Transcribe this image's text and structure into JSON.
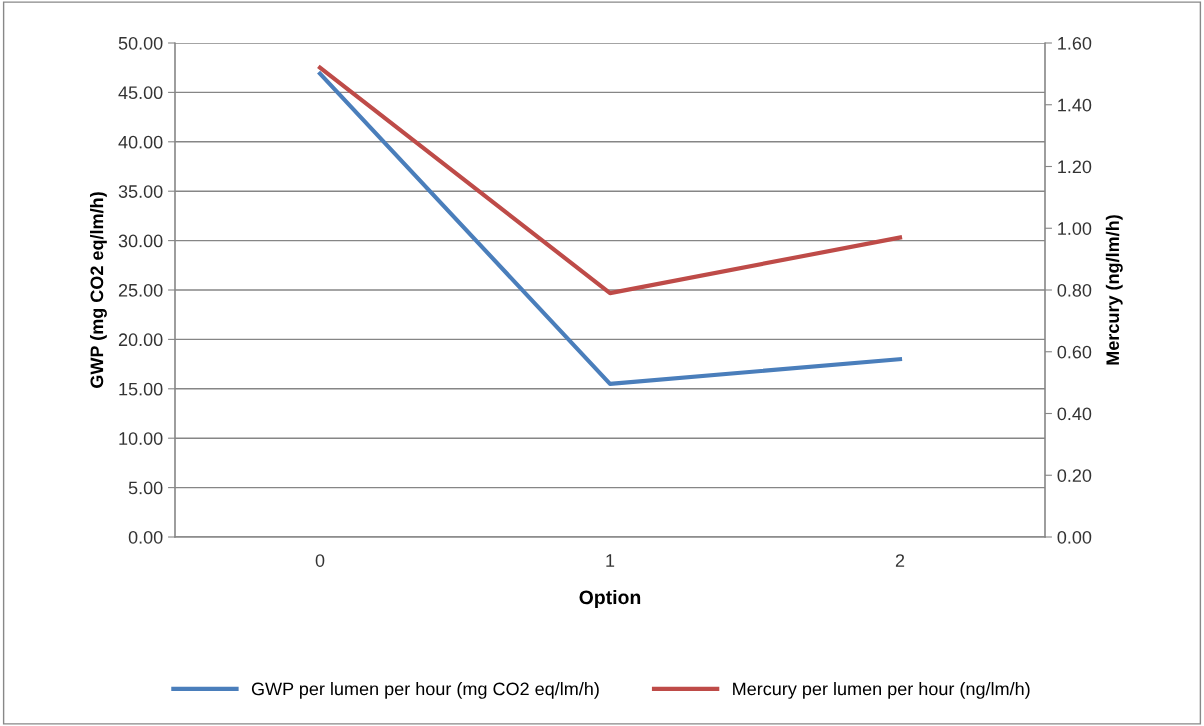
{
  "chart_data": {
    "type": "line",
    "xlabel": "Option",
    "ylabel": "GWP (mg CO2 eq/lm/h)",
    "y2label": "Mercury (ng/lm/h)",
    "categories": [
      "0",
      "1",
      "2"
    ],
    "series": [
      {
        "name": "GWP per lumen per hour (mg CO2 eq/lm/h)",
        "color": "#4a7ebb",
        "values": [
          46.9,
          15.5,
          18.0
        ]
      },
      {
        "name": "Mercury per lumen per hour (ng/lm/h)",
        "color": "#be4b48",
        "values": [
          1.52,
          0.79,
          0.97
        ],
        "axis": "y2"
      }
    ],
    "ylim": [
      0,
      50
    ],
    "yticks": [
      {
        "value": 0,
        "label": "0.00"
      },
      {
        "value": 5,
        "label": "5.00"
      },
      {
        "value": 10,
        "label": "10.00"
      },
      {
        "value": 15,
        "label": "15.00"
      },
      {
        "value": 20,
        "label": "20.00"
      },
      {
        "value": 25,
        "label": "25.00"
      },
      {
        "value": 30,
        "label": "30.00"
      },
      {
        "value": 35,
        "label": "35.00"
      },
      {
        "value": 40,
        "label": "40.00"
      },
      {
        "value": 45,
        "label": "45.00"
      },
      {
        "value": 50,
        "label": "50.00"
      }
    ],
    "y2lim": [
      0,
      1.6
    ],
    "y2ticks": [
      {
        "value": 0,
        "label": "0.00"
      },
      {
        "value": 0.2,
        "label": "0.20"
      },
      {
        "value": 0.4,
        "label": "0.40"
      },
      {
        "value": 0.6,
        "label": "0.60"
      },
      {
        "value": 0.8,
        "label": "0.80"
      },
      {
        "value": 1.0,
        "label": "1.00"
      },
      {
        "value": 1.2,
        "label": "1.20"
      },
      {
        "value": 1.4,
        "label": "1.40"
      },
      {
        "value": 1.6,
        "label": "1.60"
      }
    ],
    "grid": "y",
    "legend": "bottom",
    "marker": "none",
    "line_style": "solid"
  }
}
